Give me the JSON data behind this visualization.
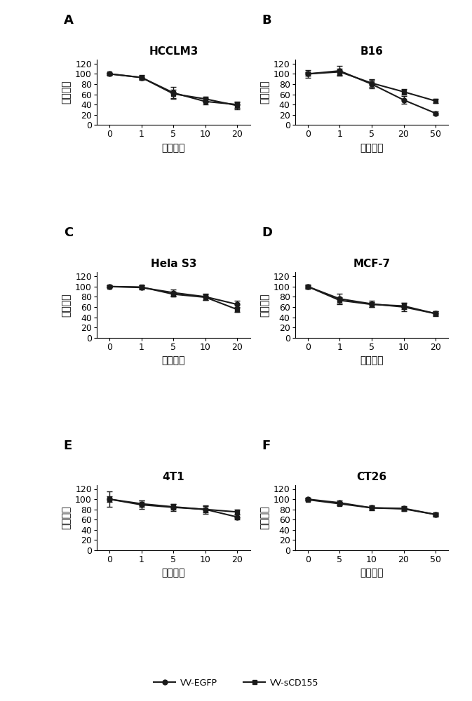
{
  "panels": [
    {
      "label": "A",
      "title": "HCCLM3",
      "xtick_labels": [
        "0",
        "1",
        "5",
        "10",
        "20"
      ],
      "ylim": [
        0,
        128
      ],
      "yticks": [
        0,
        20,
        40,
        60,
        80,
        100,
        120
      ],
      "series1": {
        "y": [
          100,
          93,
          63,
          46,
          40
        ],
        "yerr": [
          2,
          5,
          12,
          6,
          6
        ]
      },
      "series2": {
        "y": [
          100,
          93,
          61,
          51,
          38
        ],
        "yerr": [
          2,
          3,
          8,
          5,
          7
        ]
      }
    },
    {
      "label": "B",
      "title": "B16",
      "xtick_labels": [
        "0",
        "1",
        "5",
        "20",
        "50"
      ],
      "ylim": [
        0,
        128
      ],
      "yticks": [
        0,
        20,
        40,
        60,
        80,
        100,
        120
      ],
      "series1": {
        "y": [
          100,
          106,
          80,
          49,
          23
        ],
        "yerr": [
          8,
          10,
          8,
          8,
          3
        ]
      },
      "series2": {
        "y": [
          100,
          104,
          82,
          65,
          47
        ],
        "yerr": [
          4,
          6,
          7,
          5,
          4
        ]
      }
    },
    {
      "label": "C",
      "title": "Hela S3",
      "xtick_labels": [
        "0",
        "1",
        "5",
        "10",
        "20"
      ],
      "ylim": [
        0,
        128
      ],
      "yticks": [
        0,
        20,
        40,
        60,
        80,
        100,
        120
      ],
      "series1": {
        "y": [
          100,
          98,
          88,
          80,
          65
        ],
        "yerr": [
          2,
          4,
          6,
          6,
          7
        ]
      },
      "series2": {
        "y": [
          100,
          99,
          85,
          79,
          55
        ],
        "yerr": [
          2,
          3,
          5,
          5,
          5
        ]
      }
    },
    {
      "label": "D",
      "title": "MCF-7",
      "xtick_labels": [
        "0",
        "1",
        "5",
        "10",
        "20"
      ],
      "ylim": [
        0,
        128
      ],
      "yticks": [
        0,
        20,
        40,
        60,
        80,
        100,
        120
      ],
      "series1": {
        "y": [
          100,
          76,
          66,
          60,
          47
        ],
        "yerr": [
          4,
          10,
          6,
          8,
          5
        ]
      },
      "series2": {
        "y": [
          100,
          73,
          65,
          62,
          47
        ],
        "yerr": [
          3,
          6,
          5,
          6,
          4
        ]
      }
    },
    {
      "label": "E",
      "title": "4T1",
      "xtick_labels": [
        "0",
        "1",
        "5",
        "10",
        "20"
      ],
      "ylim": [
        0,
        128
      ],
      "yticks": [
        0,
        20,
        40,
        60,
        80,
        100,
        120
      ],
      "series1": {
        "y": [
          100,
          89,
          84,
          80,
          65
        ],
        "yerr": [
          15,
          8,
          7,
          8,
          5
        ]
      },
      "series2": {
        "y": [
          100,
          91,
          85,
          80,
          75
        ],
        "yerr": [
          5,
          6,
          6,
          6,
          5
        ]
      }
    },
    {
      "label": "F",
      "title": "CT26",
      "xtick_labels": [
        "0",
        "5",
        "10",
        "20",
        "50"
      ],
      "ylim": [
        0,
        128
      ],
      "yticks": [
        0,
        20,
        40,
        60,
        80,
        100,
        120
      ],
      "series1": {
        "y": [
          100,
          93,
          83,
          82,
          70
        ],
        "yerr": [
          3,
          4,
          5,
          4,
          4
        ]
      },
      "series2": {
        "y": [
          99,
          91,
          83,
          81,
          70
        ],
        "yerr": [
          2,
          3,
          4,
          4,
          3
        ]
      }
    }
  ],
  "legend": [
    "VV-EGFP",
    "VV-sCD155"
  ],
  "ylabel": "细胞活率",
  "xlabel": "感染复数",
  "line_color": "#1a1a1a",
  "marker1": "o",
  "marker2": "s",
  "markersize": 5,
  "linewidth": 1.5,
  "capsize": 3,
  "elinewidth": 1.0,
  "figsize": [
    6.73,
    10.0
  ],
  "dpi": 100
}
